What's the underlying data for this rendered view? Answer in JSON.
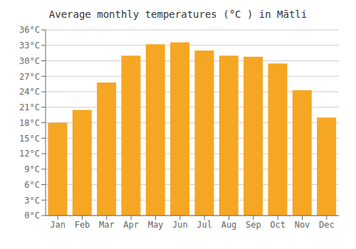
{
  "chart_data": {
    "type": "bar",
    "title": "Average monthly temperatures (°C ) in Mātli",
    "categories": [
      "Jan",
      "Feb",
      "Mar",
      "Apr",
      "May",
      "Jun",
      "Jul",
      "Aug",
      "Sep",
      "Oct",
      "Nov",
      "Dec"
    ],
    "values": [
      18.0,
      20.5,
      25.8,
      31.0,
      33.2,
      33.6,
      32.0,
      31.0,
      30.8,
      29.5,
      24.3,
      19.0
    ],
    "color": "#F5A623",
    "ylim": [
      0,
      36
    ],
    "yticks": [
      {
        "value": 0,
        "label": "0°C"
      },
      {
        "value": 3,
        "label": "3°C"
      },
      {
        "value": 6,
        "label": "6°C"
      },
      {
        "value": 9,
        "label": "9°C"
      },
      {
        "value": 12,
        "label": "12°C"
      },
      {
        "value": 15,
        "label": "15°C"
      },
      {
        "value": 18,
        "label": "18°C"
      },
      {
        "value": 21,
        "label": "21°C"
      },
      {
        "value": 24,
        "label": "24°C"
      },
      {
        "value": 27,
        "label": "27°C"
      },
      {
        "value": 30,
        "label": "30°C"
      },
      {
        "value": 33,
        "label": "33°C"
      },
      {
        "value": 36,
        "label": "36°C"
      }
    ],
    "grid": true
  }
}
